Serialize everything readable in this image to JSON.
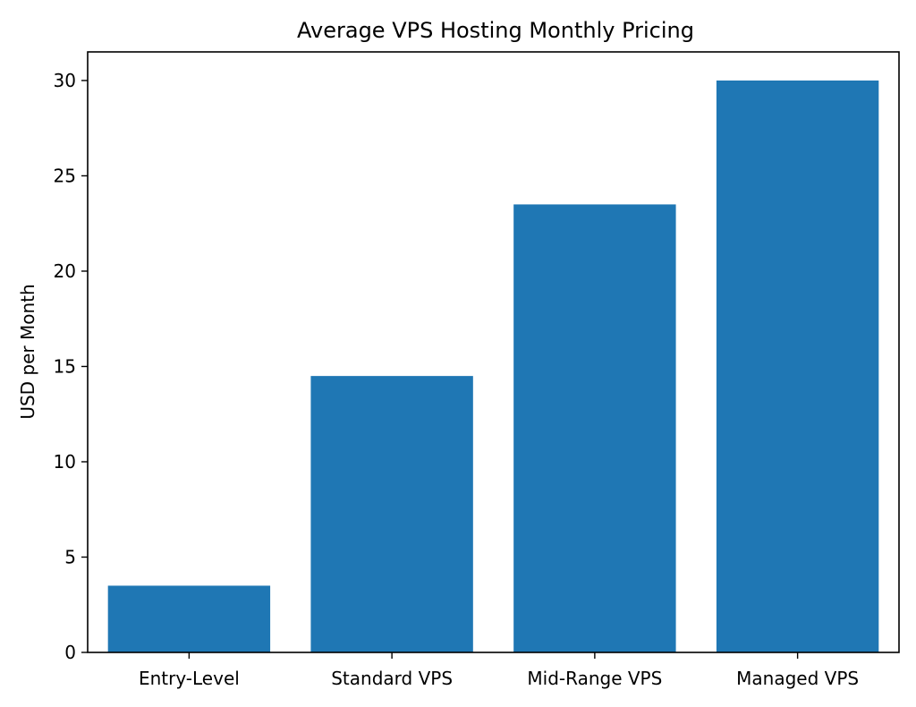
{
  "chart_data": {
    "type": "bar",
    "title": "Average VPS Hosting Monthly Pricing",
    "xlabel": "",
    "ylabel": "USD per Month",
    "categories": [
      "Entry-Level",
      "Standard VPS",
      "Mid-Range VPS",
      "Managed VPS"
    ],
    "values": [
      3.5,
      14.5,
      23.5,
      30
    ],
    "ylim": [
      0,
      31.5
    ],
    "yticks": [
      0,
      5,
      10,
      15,
      20,
      25,
      30
    ],
    "grid": false,
    "legend": "none",
    "bar_color": "#1f77b4"
  }
}
